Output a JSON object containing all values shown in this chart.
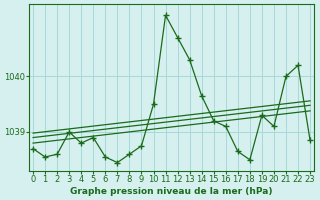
{
  "title": "Graphe pression niveau de la mer (hPa)",
  "background_color": "#d6f0f0",
  "grid_color": "#a8d8d8",
  "line_color": "#1a6b1a",
  "x_ticks": [
    0,
    1,
    2,
    3,
    4,
    5,
    6,
    7,
    8,
    9,
    10,
    11,
    12,
    13,
    14,
    15,
    16,
    17,
    18,
    19,
    20,
    21,
    22,
    23
  ],
  "y_ticks": [
    1039,
    1040
  ],
  "ylim": [
    1038.3,
    1041.3
  ],
  "xlim": [
    -0.3,
    23.3
  ],
  "main_data": [
    1038.7,
    1038.55,
    1038.6,
    1039.0,
    1038.8,
    1038.9,
    1038.55,
    1038.45,
    1038.6,
    1038.75,
    1039.5,
    1041.1,
    1040.7,
    1040.3,
    1039.65,
    1039.2,
    1039.1,
    1038.65,
    1038.5,
    1039.3,
    1039.1,
    1040.0,
    1040.2,
    1038.85
  ],
  "trend_lines": [
    [
      1038.8,
      1039.38
    ],
    [
      1038.9,
      1039.48
    ],
    [
      1038.98,
      1039.56
    ]
  ]
}
